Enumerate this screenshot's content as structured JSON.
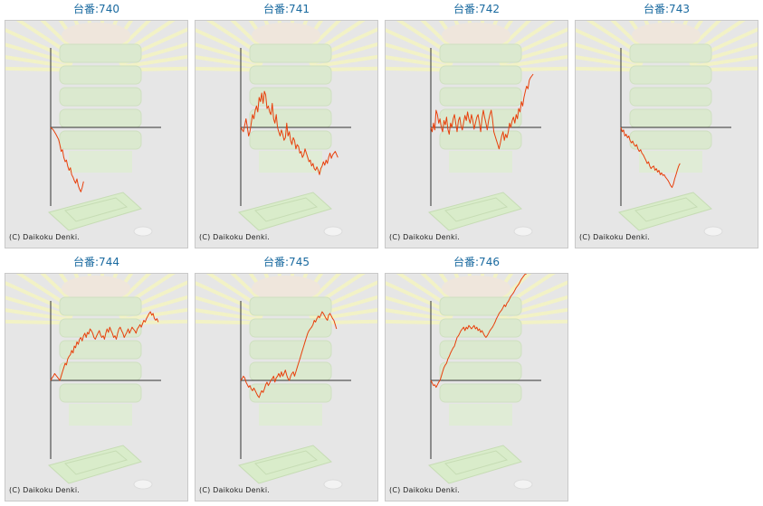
{
  "copyright": "(C) Daikoku Denki.",
  "colors": {
    "title": "#1a6aa0",
    "line": "#e8400c",
    "axis": "#333333",
    "panel_bg": "#e6e6e6"
  },
  "chart_data": [
    {
      "type": "line",
      "title": "台番:740",
      "x": [
        0,
        2,
        4,
        6,
        7,
        8,
        9,
        10,
        11,
        12,
        13,
        14,
        15,
        16,
        17,
        18,
        19,
        20,
        21,
        22,
        23,
        24,
        25
      ],
      "y": [
        0,
        -3,
        -8,
        -14,
        -20,
        -28,
        -26,
        -35,
        -40,
        -38,
        -45,
        -50,
        -47,
        -55,
        -58,
        -62,
        -65,
        -60,
        -68,
        -72,
        -75,
        -70,
        -63
      ]
    },
    {
      "type": "line",
      "title": "台番:741",
      "x": [
        0,
        2,
        4,
        5,
        6,
        7,
        8,
        9,
        10,
        11,
        12,
        13,
        14,
        15,
        16,
        17,
        18,
        19,
        20,
        21,
        22,
        23,
        24,
        25,
        26,
        27,
        28,
        29,
        30,
        31,
        32,
        33,
        34,
        35,
        36,
        37,
        38,
        39,
        40,
        41,
        42,
        43,
        44,
        45,
        46,
        47,
        48,
        49,
        50,
        51,
        52,
        53,
        54,
        55,
        56,
        57,
        58,
        59,
        60,
        61,
        62,
        63,
        64,
        65,
        66,
        67,
        68,
        69,
        70,
        72,
        74
      ],
      "y": [
        0,
        -5,
        10,
        0,
        -10,
        -5,
        5,
        15,
        10,
        20,
        25,
        18,
        35,
        30,
        40,
        28,
        42,
        38,
        22,
        25,
        18,
        15,
        28,
        10,
        5,
        15,
        0,
        -5,
        -10,
        -3,
        -8,
        -15,
        -12,
        5,
        -10,
        -5,
        -15,
        -20,
        -12,
        -15,
        -25,
        -20,
        -22,
        -30,
        -28,
        -35,
        -32,
        -25,
        -30,
        -35,
        -40,
        -38,
        -45,
        -42,
        -48,
        -50,
        -46,
        -50,
        -55,
        -48,
        -45,
        -40,
        -44,
        -38,
        -42,
        -35,
        -30,
        -36,
        -32,
        -28,
        -35
      ]
    },
    {
      "type": "line",
      "title": "台番:742",
      "x": [
        0,
        1,
        2,
        3,
        4,
        5,
        6,
        7,
        8,
        9,
        10,
        11,
        12,
        13,
        14,
        15,
        16,
        17,
        18,
        19,
        20,
        21,
        22,
        23,
        24,
        25,
        26,
        27,
        28,
        29,
        30,
        31,
        32,
        33,
        34,
        35,
        36,
        37,
        38,
        39,
        40,
        41,
        42,
        43,
        44,
        45,
        46,
        47,
        48,
        49,
        50,
        51,
        52,
        53,
        54,
        55,
        56,
        57,
        58,
        59,
        60,
        61,
        62,
        63,
        64,
        65,
        66,
        67,
        68,
        69,
        70,
        71,
        72,
        73,
        74,
        75,
        76,
        77,
        78
      ],
      "y": [
        0,
        -5,
        5,
        -3,
        20,
        15,
        5,
        10,
        0,
        -5,
        8,
        3,
        12,
        -2,
        -8,
        5,
        0,
        10,
        15,
        5,
        -5,
        8,
        12,
        2,
        -3,
        6,
        14,
        8,
        18,
        10,
        5,
        15,
        8,
        -2,
        5,
        12,
        15,
        5,
        -5,
        10,
        20,
        12,
        5,
        -3,
        8,
        15,
        20,
        10,
        -5,
        -10,
        -15,
        -20,
        -25,
        -18,
        -10,
        -5,
        -15,
        -8,
        -12,
        -5,
        5,
        0,
        8,
        12,
        5,
        15,
        10,
        22,
        18,
        30,
        25,
        35,
        42,
        48,
        45,
        55,
        58,
        60,
        62
      ]
    },
    {
      "type": "line",
      "title": "台番:743",
      "x": [
        0,
        1,
        2,
        3,
        4,
        5,
        6,
        7,
        8,
        9,
        10,
        11,
        12,
        13,
        14,
        15,
        16,
        17,
        18,
        19,
        20,
        21,
        22,
        23,
        24,
        25,
        26,
        27,
        28,
        29,
        30,
        31,
        32,
        33,
        34,
        35,
        36,
        37,
        38,
        39,
        40,
        41,
        42,
        43,
        44,
        45
      ],
      "y": [
        0,
        -5,
        -3,
        -10,
        -8,
        -12,
        -10,
        -15,
        -18,
        -16,
        -20,
        -22,
        -20,
        -25,
        -28,
        -26,
        -30,
        -32,
        -35,
        -38,
        -42,
        -40,
        -45,
        -48,
        -46,
        -45,
        -50,
        -48,
        -52,
        -50,
        -55,
        -53,
        -56,
        -55,
        -58,
        -60,
        -62,
        -65,
        -68,
        -70,
        -66,
        -60,
        -55,
        -50,
        -45,
        -42
      ]
    },
    {
      "type": "line",
      "title": "台番:744",
      "x": [
        0,
        1,
        2,
        3,
        4,
        5,
        6,
        7,
        8,
        9,
        10,
        11,
        12,
        13,
        14,
        15,
        16,
        17,
        18,
        19,
        20,
        21,
        22,
        23,
        24,
        25,
        26,
        27,
        28,
        29,
        30,
        31,
        32,
        33,
        34,
        35,
        36,
        37,
        38,
        39,
        40,
        41,
        42,
        43,
        44,
        45,
        46,
        47,
        48,
        49,
        50,
        51,
        52,
        53,
        54,
        55,
        56,
        57,
        58,
        59,
        60,
        61,
        62,
        63,
        64,
        65,
        66,
        67,
        68,
        69,
        70,
        71,
        72,
        73,
        74,
        75,
        76,
        77,
        78,
        79,
        80,
        81,
        82
      ],
      "y": [
        0,
        3,
        5,
        8,
        6,
        4,
        2,
        0,
        5,
        10,
        15,
        20,
        18,
        25,
        28,
        30,
        35,
        32,
        40,
        38,
        45,
        42,
        48,
        50,
        46,
        52,
        55,
        50,
        56,
        54,
        60,
        58,
        55,
        50,
        48,
        52,
        55,
        58,
        53,
        50,
        52,
        48,
        55,
        60,
        56,
        62,
        58,
        55,
        50,
        52,
        48,
        55,
        60,
        62,
        58,
        55,
        50,
        53,
        56,
        60,
        55,
        58,
        62,
        60,
        58,
        55,
        60,
        62,
        65,
        62,
        66,
        70,
        68,
        72,
        75,
        78,
        80,
        76,
        78,
        72,
        70,
        72,
        68
      ]
    },
    {
      "type": "line",
      "title": "台番:745",
      "x": [
        0,
        1,
        2,
        3,
        4,
        5,
        6,
        7,
        8,
        9,
        10,
        11,
        12,
        13,
        14,
        15,
        16,
        17,
        18,
        19,
        20,
        21,
        22,
        23,
        24,
        25,
        26,
        27,
        28,
        29,
        30,
        31,
        32,
        33,
        34,
        35,
        36,
        37,
        38,
        39,
        40,
        41,
        42,
        43,
        44,
        45,
        46,
        47,
        48,
        49,
        50,
        51,
        52,
        53,
        54,
        55,
        56,
        57,
        58,
        59,
        60,
        61,
        62,
        63,
        64,
        65,
        66,
        67,
        68,
        69,
        70,
        71,
        72,
        73
      ],
      "y": [
        0,
        2,
        5,
        3,
        -2,
        -5,
        -8,
        -6,
        -10,
        -12,
        -9,
        -12,
        -15,
        -18,
        -20,
        -15,
        -12,
        -14,
        -10,
        -5,
        -2,
        -6,
        -3,
        0,
        2,
        5,
        -2,
        3,
        5,
        8,
        4,
        10,
        5,
        8,
        12,
        6,
        2,
        0,
        5,
        8,
        10,
        5,
        10,
        15,
        20,
        25,
        30,
        35,
        40,
        45,
        50,
        55,
        58,
        60,
        62,
        65,
        70,
        68,
        72,
        75,
        73,
        76,
        80,
        78,
        75,
        72,
        70,
        76,
        78,
        75,
        72,
        70,
        65,
        60
      ]
    },
    {
      "type": "line",
      "title": "台番:746",
      "x": [
        0,
        1,
        2,
        3,
        4,
        5,
        6,
        7,
        8,
        9,
        10,
        11,
        12,
        13,
        14,
        15,
        16,
        17,
        18,
        19,
        20,
        21,
        22,
        23,
        24,
        25,
        26,
        27,
        28,
        29,
        30,
        31,
        32,
        33,
        34,
        35,
        36,
        37,
        38,
        39,
        40,
        41,
        42,
        43,
        44,
        45,
        46,
        47,
        48,
        49,
        50,
        51,
        52,
        53,
        54,
        55,
        56,
        57,
        58,
        59,
        60,
        61,
        62,
        63,
        64,
        65,
        66,
        67,
        68,
        69,
        70,
        71,
        72,
        73
      ],
      "y": [
        0,
        -3,
        -6,
        -5,
        -8,
        -5,
        -2,
        0,
        5,
        10,
        15,
        18,
        20,
        25,
        28,
        32,
        35,
        38,
        40,
        45,
        50,
        52,
        55,
        58,
        60,
        62,
        58,
        62,
        60,
        64,
        62,
        60,
        62,
        64,
        60,
        62,
        58,
        60,
        56,
        58,
        55,
        52,
        50,
        52,
        55,
        58,
        60,
        62,
        65,
        68,
        72,
        75,
        78,
        80,
        82,
        85,
        88,
        86,
        90,
        92,
        95,
        98,
        100,
        102,
        105,
        108,
        110,
        112,
        115,
        118,
        120,
        122,
        124,
        125
      ]
    }
  ]
}
